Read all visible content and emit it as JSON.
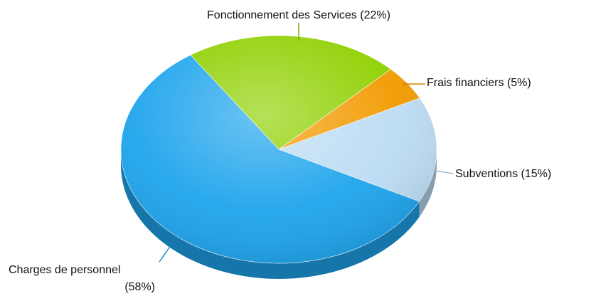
{
  "chart_data": {
    "type": "pie",
    "categories": [
      "Fonctionnement des Services",
      "Frais financiers",
      "Subventions",
      "Charges de personnel"
    ],
    "values": [
      22,
      5,
      15,
      58
    ],
    "value_labels": [
      "(22%)",
      "(5%)",
      "(15%)",
      "(58%)"
    ],
    "colors": [
      "#8fd000",
      "#f29a00",
      "#bcdcf4",
      "#1ea4ec"
    ]
  }
}
